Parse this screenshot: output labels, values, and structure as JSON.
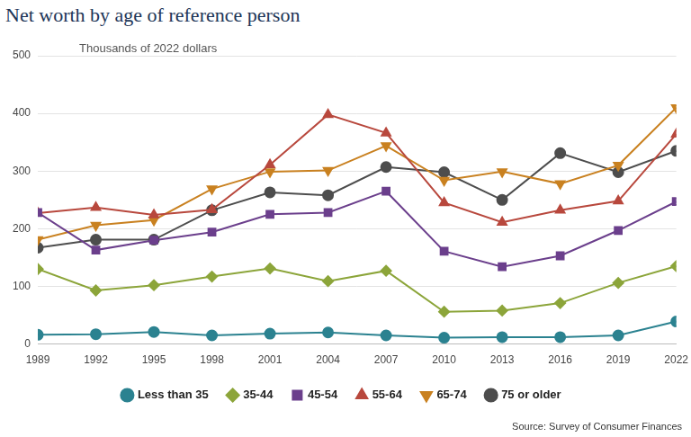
{
  "chart_data": {
    "type": "line",
    "title": "Net worth by age of reference person",
    "subtitle": "Thousands of 2022 dollars",
    "source": "Source: Survey of Consumer Finances",
    "categories": [
      "1989",
      "1992",
      "1995",
      "1998",
      "2001",
      "2004",
      "2007",
      "2010",
      "2013",
      "2016",
      "2019",
      "2022"
    ],
    "series": [
      {
        "name": "Less than 35",
        "color": "#2b8290",
        "marker": "circle",
        "values": [
          16,
          17,
          21,
          15,
          18,
          20,
          15,
          11,
          12,
          12,
          15,
          39
        ]
      },
      {
        "name": "35-44",
        "color": "#8ca53a",
        "marker": "diamond",
        "values": [
          130,
          93,
          102,
          117,
          131,
          109,
          127,
          56,
          58,
          71,
          106,
          135
        ]
      },
      {
        "name": "45-54",
        "color": "#6b3f8c",
        "marker": "square",
        "values": [
          228,
          163,
          180,
          194,
          225,
          228,
          265,
          161,
          134,
          153,
          197,
          247
        ]
      },
      {
        "name": "55-64",
        "color": "#b8483d",
        "marker": "triangle",
        "values": [
          227,
          237,
          224,
          233,
          311,
          398,
          366,
          245,
          211,
          232,
          248,
          364
        ]
      },
      {
        "name": "65-74",
        "color": "#c98120",
        "marker": "triangle-down",
        "values": [
          181,
          206,
          215,
          269,
          299,
          301,
          344,
          284,
          299,
          278,
          310,
          410
        ]
      },
      {
        "name": "75 or older",
        "color": "#4d4d4d",
        "marker": "circle",
        "values": [
          167,
          181,
          181,
          232,
          263,
          258,
          307,
          298,
          250,
          331,
          298,
          335
        ]
      }
    ],
    "ylim": [
      0,
      500
    ],
    "yticks": [
      0,
      100,
      200,
      300,
      400,
      500
    ],
    "grid": true,
    "legend": "bottom"
  }
}
